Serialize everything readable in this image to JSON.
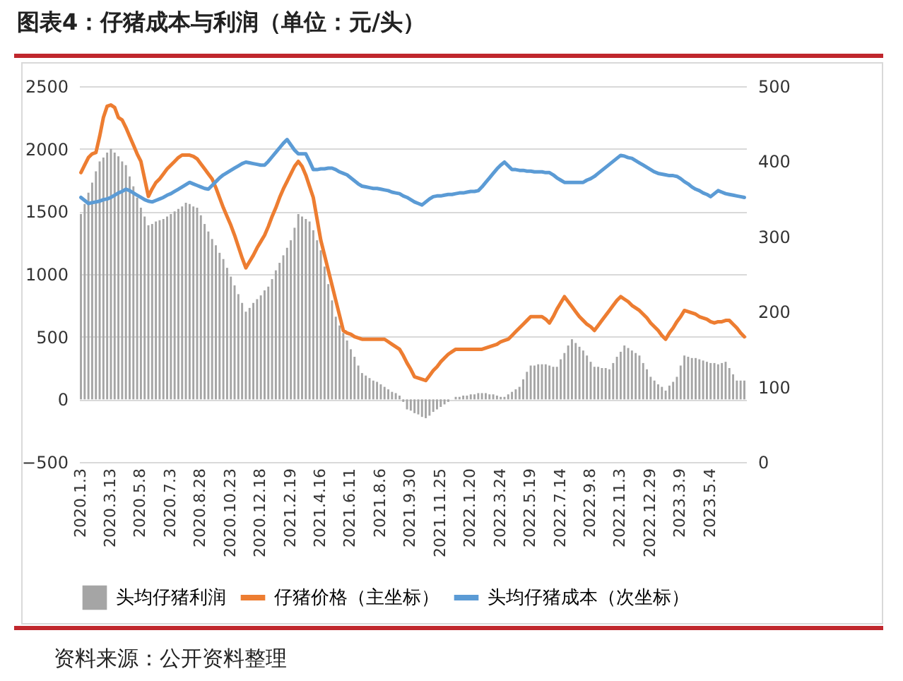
{
  "chart_data": {
    "type": "bar",
    "title": "图表4：仔猪成本与利润（单位：元/头）",
    "annotations": [
      "资料来源：公开资料整理"
    ],
    "categories": [
      "2020.1.3",
      null,
      null,
      null,
      null,
      null,
      null,
      null,
      "2020.3.13",
      null,
      null,
      null,
      null,
      null,
      null,
      null,
      "2020.5.8",
      null,
      null,
      null,
      null,
      null,
      null,
      null,
      "2020.7.3",
      null,
      null,
      null,
      null,
      null,
      null,
      null,
      "2020.8.28",
      null,
      null,
      null,
      null,
      null,
      null,
      null,
      "2020.10.23",
      null,
      null,
      null,
      null,
      null,
      null,
      null,
      "2020.12.18",
      null,
      null,
      null,
      null,
      null,
      null,
      null,
      "2021.2.19",
      null,
      null,
      null,
      null,
      null,
      null,
      null,
      "2021.4.16",
      null,
      null,
      null,
      null,
      null,
      null,
      null,
      "2021.6.11",
      null,
      null,
      null,
      null,
      null,
      null,
      null,
      "2021.8.6",
      null,
      null,
      null,
      null,
      null,
      null,
      null,
      "2021.9.30",
      null,
      null,
      null,
      null,
      null,
      null,
      null,
      "2021.11.25",
      null,
      null,
      null,
      null,
      null,
      null,
      null,
      "2022.1.20",
      null,
      null,
      null,
      null,
      null,
      null,
      null,
      "2022.3.24",
      null,
      null,
      null,
      null,
      null,
      null,
      null,
      "2022.5.19",
      null,
      null,
      null,
      null,
      null,
      null,
      null,
      "2022.7.14",
      null,
      null,
      null,
      null,
      null,
      null,
      null,
      "2022.9.8",
      null,
      null,
      null,
      null,
      null,
      null,
      null,
      "2022.11.3",
      null,
      null,
      null,
      null,
      null,
      null,
      null,
      "2022.12.29",
      null,
      null,
      null,
      null,
      null,
      null,
      null,
      "2023.3.9",
      null,
      null,
      null,
      null,
      null,
      null,
      null,
      "2023.5.4",
      null,
      null,
      null,
      null,
      null,
      null,
      null,
      null,
      null
    ],
    "series": [
      {
        "name": "头均仔猪利润",
        "color": "#a5a5a5",
        "values": [
          1480,
          1560,
          1650,
          1730,
          1820,
          1900,
          1930,
          1970,
          2000,
          1970,
          1940,
          1900,
          1870,
          1780,
          1700,
          1610,
          1530,
          1460,
          1390,
          1400,
          1420,
          1430,
          1440,
          1460,
          1480,
          1500,
          1520,
          1540,
          1570,
          1560,
          1540,
          1530,
          1470,
          1400,
          1340,
          1280,
          1230,
          1170,
          1120,
          1050,
          980,
          910,
          840,
          770,
          700,
          730,
          770,
          800,
          830,
          870,
          900,
          960,
          1030,
          1090,
          1150,
          1210,
          1270,
          1370,
          1480,
          1460,
          1440,
          1420,
          1350,
          1270,
          1190,
          1060,
          920,
          790,
          660,
          590,
          530,
          470,
          400,
          340,
          270,
          210,
          190,
          170,
          150,
          140,
          120,
          100,
          80,
          60,
          50,
          30,
          -20,
          -80,
          -90,
          -110,
          -120,
          -140,
          -150,
          -130,
          -100,
          -80,
          -60,
          -40,
          -20,
          0,
          20,
          20,
          30,
          30,
          40,
          40,
          50,
          50,
          50,
          40,
          40,
          30,
          20,
          20,
          40,
          60,
          80,
          100,
          160,
          220,
          270,
          270,
          280,
          280,
          280,
          270,
          260,
          260,
          320,
          370,
          430,
          480,
          450,
          420,
          390,
          350,
          300,
          260,
          260,
          250,
          250,
          240,
          290,
          340,
          380,
          430,
          410,
          390,
          370,
          350,
          290,
          240,
          180,
          150,
          120,
          100,
          70,
          110,
          140,
          180,
          270,
          350,
          340,
          330,
          330,
          320,
          310,
          300,
          290,
          290,
          280,
          290,
          300,
          250,
          200,
          150,
          150,
          150
        ]
      },
      {
        "name": "仔猪价格（主坐标）",
        "type": "line",
        "color": "#ed7d31",
        "values": [
          1810,
          1870,
          1930,
          1960,
          1970,
          2100,
          2250,
          2340,
          2350,
          2330,
          2250,
          2230,
          2170,
          2100,
          2030,
          1960,
          1900,
          1760,
          1620,
          1680,
          1730,
          1760,
          1800,
          1840,
          1870,
          1900,
          1930,
          1950,
          1950,
          1950,
          1940,
          1920,
          1880,
          1840,
          1800,
          1760,
          1690,
          1610,
          1530,
          1460,
          1390,
          1310,
          1220,
          1130,
          1050,
          1100,
          1150,
          1210,
          1260,
          1310,
          1380,
          1460,
          1530,
          1610,
          1680,
          1740,
          1800,
          1860,
          1900,
          1860,
          1790,
          1700,
          1610,
          1440,
          1270,
          1150,
          1030,
          910,
          790,
          670,
          550,
          530,
          520,
          500,
          490,
          480,
          480,
          480,
          480,
          480,
          480,
          480,
          460,
          440,
          420,
          400,
          350,
          290,
          240,
          180,
          170,
          160,
          150,
          190,
          230,
          260,
          300,
          330,
          360,
          380,
          400,
          400,
          400,
          400,
          400,
          400,
          400,
          400,
          410,
          420,
          430,
          440,
          460,
          470,
          480,
          510,
          540,
          570,
          600,
          630,
          660,
          660,
          660,
          660,
          640,
          610,
          660,
          720,
          770,
          820,
          780,
          740,
          700,
          660,
          630,
          600,
          580,
          550,
          590,
          630,
          670,
          710,
          750,
          790,
          820,
          800,
          780,
          750,
          730,
          710,
          680,
          650,
          610,
          580,
          550,
          510,
          480,
          530,
          570,
          620,
          660,
          710,
          700,
          690,
          680,
          660,
          650,
          640,
          620,
          610,
          620,
          620,
          630,
          630,
          600,
          570,
          530,
          500
        ]
      },
      {
        "name": "头均仔猪成本（次坐标）",
        "type": "line",
        "axis": "y2",
        "color": "#5b9bd5",
        "values": [
          352,
          348,
          344,
          345,
          346,
          347,
          349,
          350,
          352,
          355,
          358,
          360,
          363,
          361,
          358,
          355,
          352,
          349,
          347,
          346,
          348,
          350,
          352,
          355,
          357,
          360,
          363,
          366,
          369,
          372,
          370,
          368,
          366,
          364,
          363,
          368,
          373,
          378,
          382,
          385,
          388,
          391,
          394,
          397,
          399,
          398,
          397,
          396,
          395,
          395,
          400,
          406,
          412,
          418,
          424,
          429,
          422,
          415,
          410,
          410,
          410,
          400,
          389,
          389,
          390,
          390,
          391,
          391,
          389,
          386,
          384,
          382,
          378,
          374,
          370,
          367,
          366,
          365,
          364,
          364,
          363,
          362,
          361,
          359,
          358,
          357,
          354,
          352,
          349,
          346,
          344,
          342,
          346,
          350,
          353,
          354,
          354,
          355,
          356,
          356,
          357,
          358,
          358,
          359,
          360,
          360,
          361,
          366,
          372,
          378,
          384,
          390,
          395,
          399,
          394,
          389,
          389,
          388,
          388,
          387,
          387,
          386,
          386,
          386,
          385,
          385,
          382,
          378,
          375,
          372,
          372,
          372,
          372,
          372,
          372,
          375,
          377,
          380,
          384,
          388,
          392,
          396,
          400,
          404,
          408,
          407,
          405,
          404,
          401,
          398,
          395,
          392,
          389,
          386,
          384,
          383,
          382,
          381,
          381,
          380,
          377,
          373,
          370,
          366,
          363,
          361,
          358,
          356,
          353,
          357,
          361,
          359,
          357,
          356,
          355,
          354,
          353,
          352
        ]
      }
    ],
    "ylim": [
      -500,
      2500
    ],
    "yticks": [
      -500,
      0,
      500,
      1000,
      1500,
      2000,
      2500
    ],
    "y2lim": [
      0,
      500
    ],
    "y2ticks": [
      0,
      100,
      200,
      300,
      400,
      500
    ],
    "grid": "y",
    "legend": "bottom",
    "marker": "none",
    "line_style": "solid"
  }
}
